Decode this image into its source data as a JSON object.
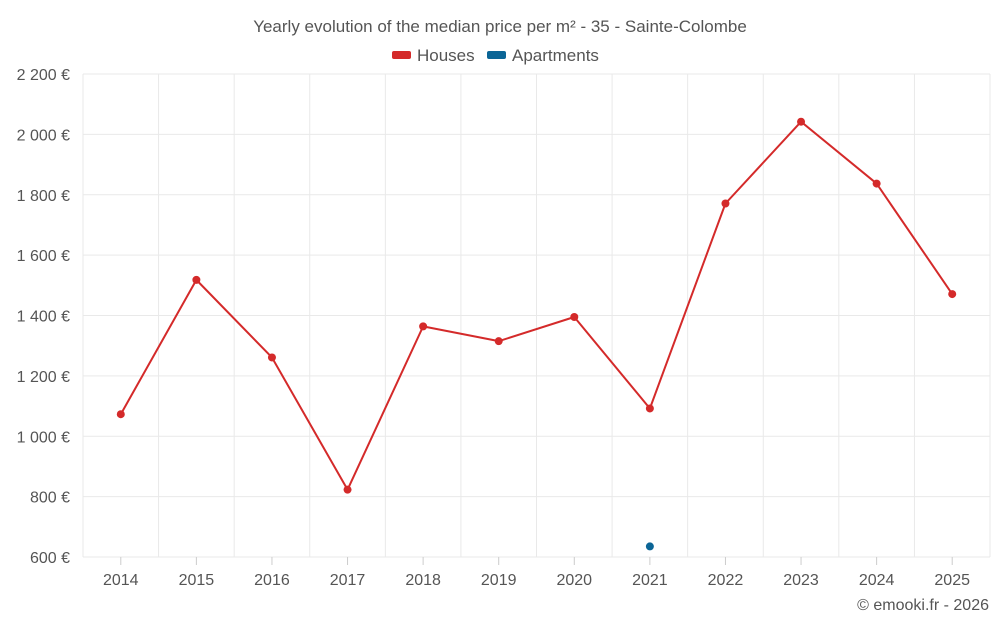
{
  "chart_data": {
    "type": "line",
    "title": "Yearly evolution of the median price per m² - 35 - Sainte-Colombe",
    "categories": [
      "2014",
      "2015",
      "2016",
      "2017",
      "2018",
      "2019",
      "2020",
      "2021",
      "2022",
      "2023",
      "2024",
      "2025"
    ],
    "y_ticks": [
      600,
      800,
      1000,
      1200,
      1400,
      1600,
      1800,
      2000,
      2200
    ],
    "y_tick_labels": [
      "600 €",
      "800 €",
      "1 000 €",
      "1 200 €",
      "1 400 €",
      "1 600 €",
      "1 800 €",
      "2 000 €",
      "2 200 €"
    ],
    "ylim": [
      600,
      2200
    ],
    "grid": true,
    "legend_position": "top-center",
    "series": [
      {
        "name": "Houses",
        "color": "#d42a2a",
        "values": [
          1073,
          1518,
          1261,
          823,
          1364,
          1315,
          1395,
          1092,
          1771,
          2042,
          1837,
          1471
        ]
      },
      {
        "name": "Apartments",
        "color": "#0b6596",
        "values": [
          null,
          null,
          null,
          null,
          null,
          null,
          null,
          635,
          null,
          null,
          null,
          null
        ]
      }
    ]
  },
  "credit": "© emooki.fr - 2026"
}
